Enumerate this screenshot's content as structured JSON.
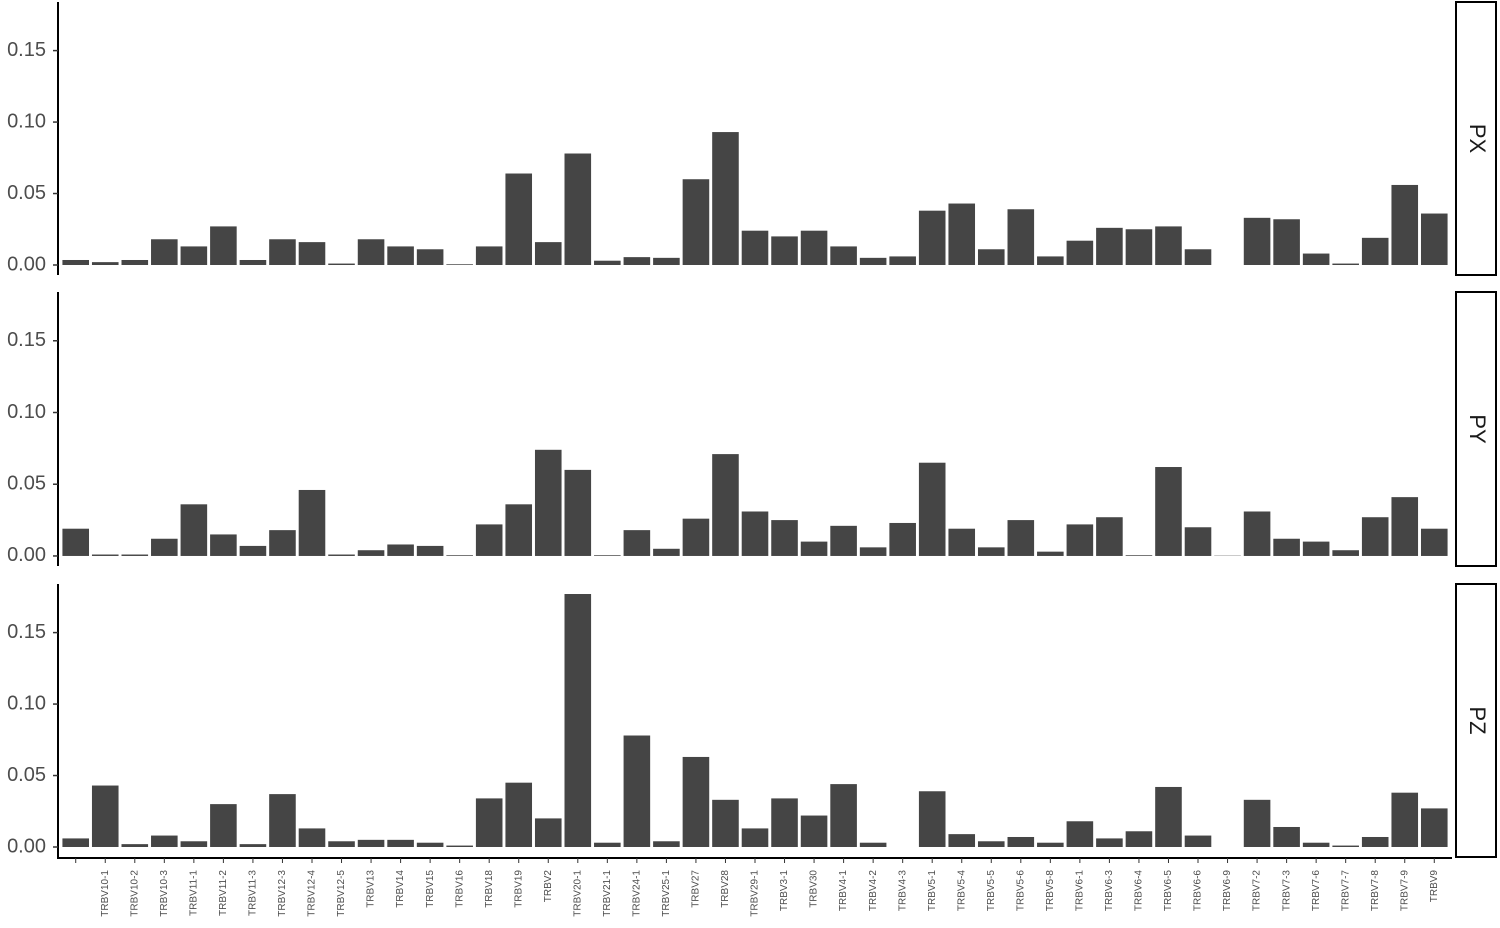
{
  "chart_data": {
    "type": "bar",
    "color": "#454545",
    "categories": [
      null,
      "TRBV10-1",
      "TRBV10-2",
      "TRBV10-3",
      "TRBV11-1",
      "TRBV11-2",
      "TRBV11-3",
      "TRBV12-3",
      "TRBV12-4",
      "TRBV12-5",
      "TRBV13",
      "TRBV14",
      "TRBV15",
      "TRBV16",
      "TRBV18",
      "TRBV19",
      "TRBV2",
      "TRBV20-1",
      "TRBV21-1",
      "TRBV24-1",
      "TRBV25-1",
      "TRBV27",
      "TRBV28",
      "TRBV29-1",
      "TRBV3-1",
      "TRBV30",
      "TRBV4-1",
      "TRBV4-2",
      "TRBV4-3",
      "TRBV5-1",
      "TRBV5-4",
      "TRBV5-5",
      "TRBV5-6",
      "TRBV5-8",
      "TRBV6-1",
      "TRBV6-3",
      "TRBV6-4",
      "TRBV6-5",
      "TRBV6-6",
      "TRBV6-9",
      "TRBV7-2",
      "TRBV7-3",
      "TRBV7-6",
      "TRBV7-7",
      "TRBV7-8",
      "TRBV7-9",
      "TRBV9"
    ],
    "ylim": [
      -0.007,
      0.184
    ],
    "yticks": [
      {
        "value": 0,
        "label": "0.00"
      },
      0.05,
      {
        "value": 0.1,
        "label": "0.10"
      },
      0.15
    ],
    "facets": [
      {
        "label": "PX",
        "values": [
          0.0035,
          0.002,
          0.0035,
          0.018,
          0.013,
          0.027,
          0.0035,
          0.018,
          0.016,
          0.001,
          0.018,
          0.013,
          0.011,
          0.0005,
          0.013,
          0.064,
          0.016,
          0.078,
          0.003,
          0.0055,
          0.005,
          0.06,
          0.093,
          0.024,
          0.02,
          0.024,
          0.013,
          0.005,
          0.006,
          0.038,
          0.043,
          0.011,
          0.039,
          0.006,
          0.017,
          0.026,
          0.025,
          0.027,
          0.011,
          0,
          0.033,
          0.032,
          0.008,
          0.001,
          0.019,
          0.056,
          0.036
        ]
      },
      {
        "label": "PY",
        "values": [
          0.019,
          0.001,
          0.001,
          0.012,
          0.036,
          0.015,
          0.007,
          0.018,
          0.046,
          0.001,
          0.004,
          0.008,
          0.007,
          0.0005,
          0.022,
          0.036,
          0.074,
          0.06,
          0.0005,
          0.018,
          0.005,
          0.026,
          0.071,
          0.031,
          0.025,
          0.01,
          0.021,
          0.006,
          0.023,
          0.065,
          0.019,
          0.006,
          0.025,
          0.003,
          0.022,
          0.027,
          0.0005,
          0.062,
          0.02,
          0.0002,
          0.031,
          0.012,
          0.01,
          0.004,
          0.027,
          0.041,
          0.019
        ]
      },
      {
        "label": "PZ",
        "values": [
          0.006,
          0.043,
          0.002,
          0.008,
          0.004,
          0.03,
          0.002,
          0.037,
          0.013,
          0.004,
          0.005,
          0.005,
          0.003,
          0.001,
          0.034,
          0.045,
          0.02,
          0.177,
          0.003,
          0.078,
          0.004,
          0.063,
          0.033,
          0.013,
          0.034,
          0.022,
          0.044,
          0.003,
          0,
          0.039,
          0.009,
          0.004,
          0.007,
          0.003,
          0.018,
          0.006,
          0.011,
          0.042,
          0.008,
          0,
          0.033,
          0.014,
          0.003,
          0.001,
          0.007,
          0.038,
          0.027
        ]
      }
    ]
  }
}
